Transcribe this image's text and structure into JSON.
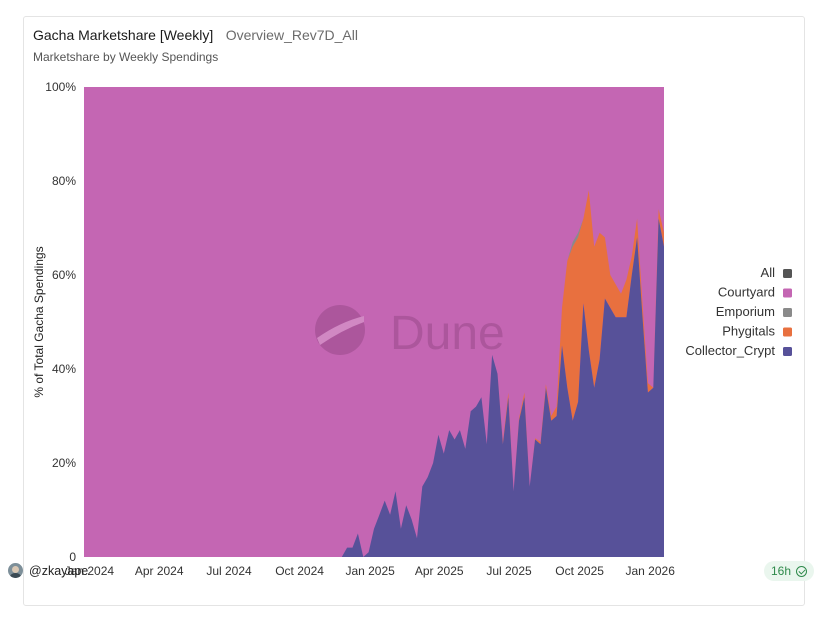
{
  "header": {
    "title": "Gacha Marketshare [Weekly]",
    "query_name": "Overview_Rev7D_All",
    "subtitle": "Marketshare by Weekly Spendings"
  },
  "footer": {
    "user": "@zkayape",
    "age_badge": "16h"
  },
  "watermark": "Dune",
  "colors": {
    "All": "#555555",
    "Courtyard": "#c466b3",
    "Emporium": "#8a8a8a",
    "Phygitals": "#e8703f",
    "Collector_Crypt": "#575199"
  },
  "chart_data": {
    "type": "area",
    "stacked": true,
    "ylabel": "% of Total Gacha Spendings",
    "ylim": [
      0,
      100
    ],
    "y_ticks": [
      "0",
      "20%",
      "40%",
      "60%",
      "80%",
      "100%"
    ],
    "x_ticks": [
      "Jan 2024",
      "Apr 2024",
      "Jul 2024",
      "Oct 2024",
      "Jan 2025",
      "Apr 2025",
      "Jul 2025",
      "Oct 2025",
      "Jan 2026"
    ],
    "x_start": "2023-12-25",
    "x_end": "2026-01-19",
    "legend": [
      "All",
      "Courtyard",
      "Emporium",
      "Phygitals",
      "Collector_Crypt"
    ],
    "legend_position": "right",
    "grid": false,
    "series": [
      {
        "name": "Collector_Crypt",
        "points": [
          [
            "2023-12-25",
            0
          ],
          [
            "2024-11-25",
            0
          ],
          [
            "2024-12-02",
            2
          ],
          [
            "2024-12-09",
            2
          ],
          [
            "2024-12-16",
            5
          ],
          [
            "2024-12-23",
            0
          ],
          [
            "2024-12-30",
            1
          ],
          [
            "2025-01-06",
            6
          ],
          [
            "2025-01-13",
            9
          ],
          [
            "2025-01-20",
            12
          ],
          [
            "2025-01-27",
            9
          ],
          [
            "2025-02-03",
            14
          ],
          [
            "2025-02-10",
            6
          ],
          [
            "2025-02-17",
            11
          ],
          [
            "2025-02-24",
            8
          ],
          [
            "2025-03-03",
            4
          ],
          [
            "2025-03-10",
            15
          ],
          [
            "2025-03-17",
            17
          ],
          [
            "2025-03-24",
            20
          ],
          [
            "2025-03-31",
            26
          ],
          [
            "2025-04-07",
            22
          ],
          [
            "2025-04-14",
            27
          ],
          [
            "2025-04-21",
            25
          ],
          [
            "2025-04-28",
            27
          ],
          [
            "2025-05-05",
            23
          ],
          [
            "2025-05-12",
            31
          ],
          [
            "2025-05-19",
            32
          ],
          [
            "2025-05-26",
            34
          ],
          [
            "2025-06-02",
            24
          ],
          [
            "2025-06-09",
            43
          ],
          [
            "2025-06-16",
            39
          ],
          [
            "2025-06-23",
            24
          ],
          [
            "2025-06-30",
            34
          ],
          [
            "2025-07-07",
            14
          ],
          [
            "2025-07-14",
            29
          ],
          [
            "2025-07-21",
            34
          ],
          [
            "2025-07-28",
            15
          ],
          [
            "2025-08-04",
            25
          ],
          [
            "2025-08-11",
            24
          ],
          [
            "2025-08-18",
            36
          ],
          [
            "2025-08-25",
            29
          ],
          [
            "2025-09-01",
            30
          ],
          [
            "2025-09-08",
            45
          ],
          [
            "2025-09-15",
            36
          ],
          [
            "2025-09-22",
            29
          ],
          [
            "2025-09-29",
            33
          ],
          [
            "2025-10-06",
            54
          ],
          [
            "2025-10-13",
            44
          ],
          [
            "2025-10-20",
            36
          ],
          [
            "2025-10-27",
            42
          ],
          [
            "2025-11-03",
            55
          ],
          [
            "2025-11-10",
            53
          ],
          [
            "2025-11-17",
            51
          ],
          [
            "2025-11-24",
            51
          ],
          [
            "2025-12-01",
            51
          ],
          [
            "2025-12-08",
            60
          ],
          [
            "2025-12-15",
            68
          ],
          [
            "2025-12-22",
            51
          ],
          [
            "2025-12-29",
            35
          ],
          [
            "2026-01-05",
            36
          ],
          [
            "2026-01-12",
            72
          ],
          [
            "2026-01-19",
            66
          ]
        ]
      },
      {
        "name": "Phygitals",
        "points": [
          [
            "2023-12-25",
            0
          ],
          [
            "2025-05-26",
            0
          ],
          [
            "2025-06-09",
            0
          ],
          [
            "2025-06-16",
            0
          ],
          [
            "2025-06-30",
            1
          ],
          [
            "2025-07-07",
            0
          ],
          [
            "2025-07-21",
            1
          ],
          [
            "2025-07-28",
            0
          ],
          [
            "2025-08-25",
            1
          ],
          [
            "2025-09-01",
            2
          ],
          [
            "2025-09-08",
            8
          ],
          [
            "2025-09-15",
            27
          ],
          [
            "2025-09-22",
            37
          ],
          [
            "2025-09-29",
            35
          ],
          [
            "2025-10-06",
            18
          ],
          [
            "2025-10-13",
            34
          ],
          [
            "2025-10-20",
            30
          ],
          [
            "2025-10-27",
            27
          ],
          [
            "2025-11-03",
            13
          ],
          [
            "2025-11-10",
            7
          ],
          [
            "2025-11-17",
            7
          ],
          [
            "2025-11-24",
            5
          ],
          [
            "2025-12-01",
            8
          ],
          [
            "2025-12-08",
            4
          ],
          [
            "2025-12-15",
            4
          ],
          [
            "2025-12-22",
            3
          ],
          [
            "2025-12-29",
            2
          ],
          [
            "2026-01-05",
            0
          ],
          [
            "2026-01-12",
            2
          ],
          [
            "2026-01-19",
            3
          ]
        ]
      },
      {
        "name": "Emporium",
        "points": [
          [
            "2023-12-25",
            0
          ],
          [
            "2025-09-15",
            0
          ],
          [
            "2025-09-22",
            1
          ],
          [
            "2025-09-29",
            1
          ],
          [
            "2025-10-06",
            0
          ],
          [
            "2026-01-19",
            0
          ]
        ]
      },
      {
        "name": "Courtyard",
        "remainder": true
      }
    ]
  }
}
